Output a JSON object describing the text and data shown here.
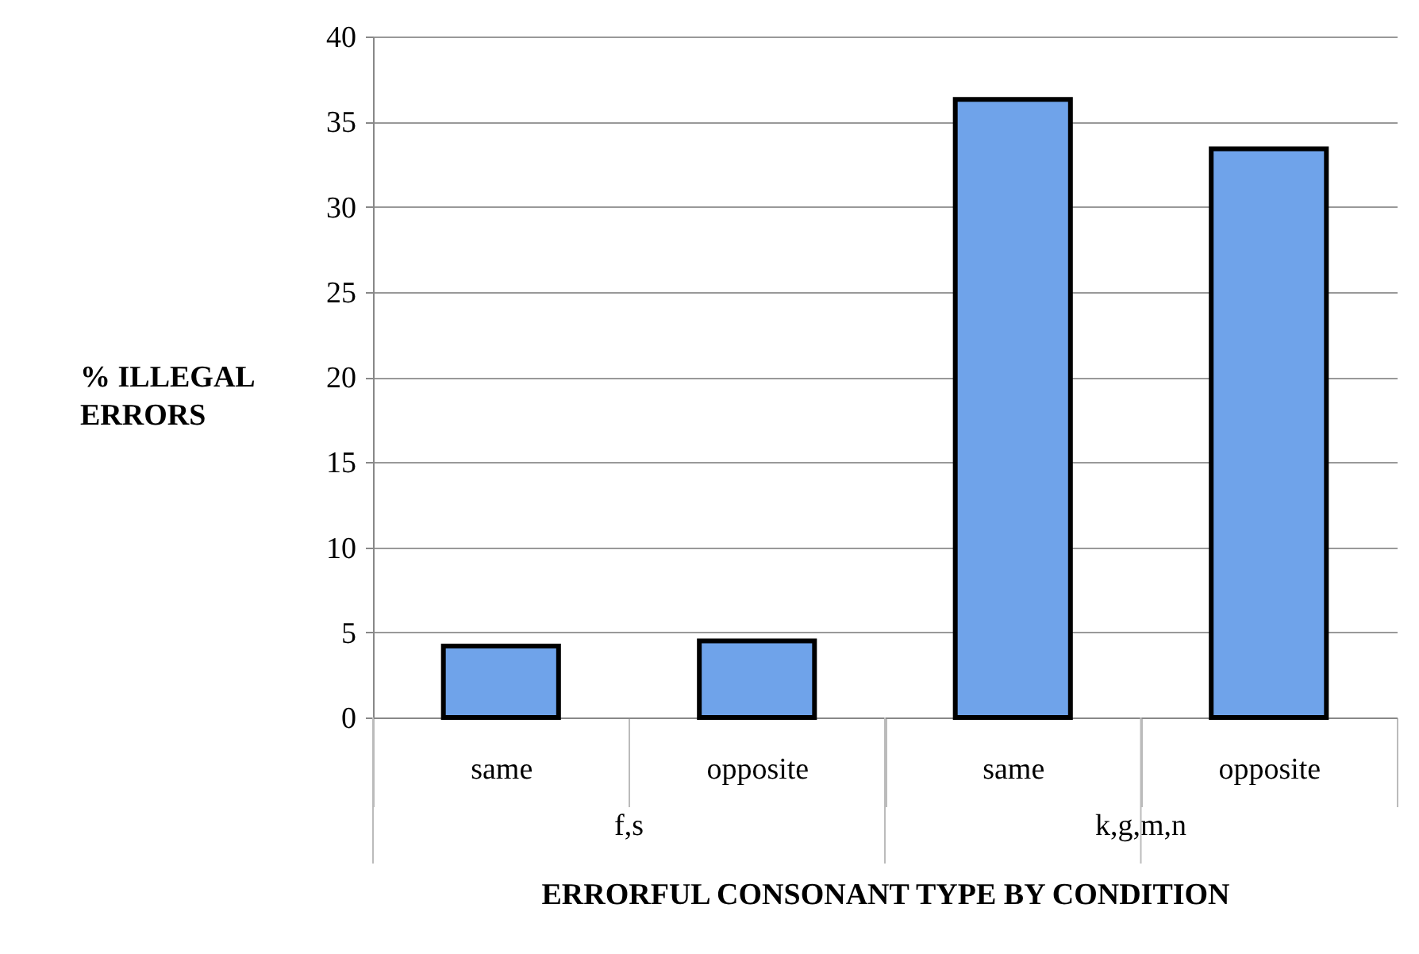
{
  "chart_data": {
    "type": "bar",
    "xlabel": "ERRORFUL CONSONANT TYPE BY CONDITION",
    "ylabel": "% ILLEGAL ERRORS",
    "categories": [
      "same",
      "opposite",
      "same",
      "opposite"
    ],
    "values": [
      4.2,
      4.5,
      36.3,
      33.4
    ],
    "color": "#6fa3ea",
    "ylim": [
      0,
      40
    ],
    "yticks": [
      0,
      5,
      10,
      15,
      20,
      25,
      30,
      35,
      40
    ],
    "grid": "y",
    "annotations": [
      "f,s",
      "k,g,m,n"
    ]
  }
}
